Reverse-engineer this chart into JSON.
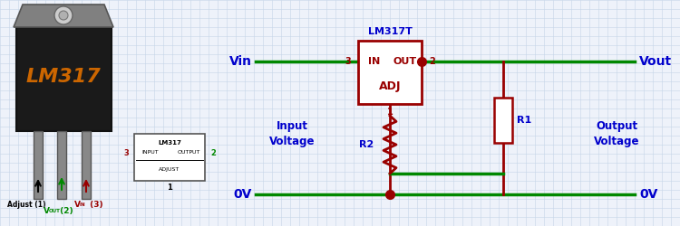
{
  "bg_color": "#eef2fa",
  "grid_color": "#c5d5e8",
  "green": "#008800",
  "dark_red": "#990000",
  "blue": "#0000cc",
  "black": "#000000",
  "orange": "#cc6600",
  "chip_label": "LM317T",
  "chip_IN": "IN",
  "chip_OUT": "OUT",
  "chip_ADJ": "ADJ",
  "pin3": "3",
  "pin2": "2",
  "pin1": "1",
  "vin_label": "Vin",
  "vout_label": "Vout",
  "ov_label_left": "0V",
  "ov_label_right": "0V",
  "r1_label": "R1",
  "r2_label": "R2",
  "input_voltage": "Input\nVoltage",
  "output_voltage": "Output\nVoltage",
  "adjust1": "Adjust (1)",
  "lm317_small_label": "LM317",
  "lm317_big_label": "LM317",
  "small_input": "INPUT",
  "small_output": "OUTPUT",
  "small_adjust": "ADJUST"
}
